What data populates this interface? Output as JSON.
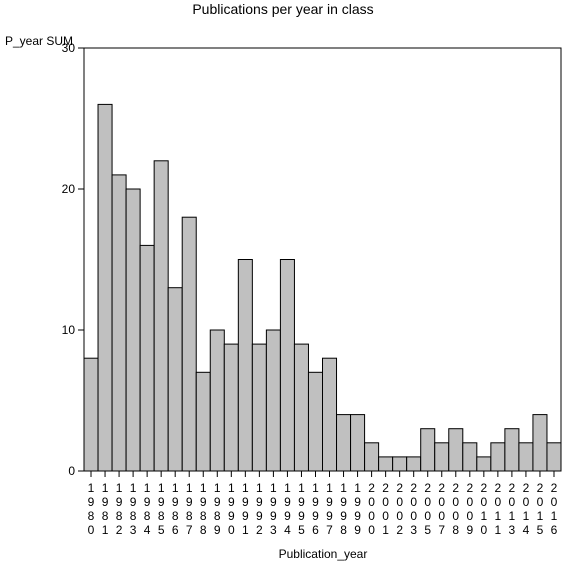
{
  "chart_data": {
    "type": "bar",
    "title": "Publications per year in class",
    "ylabel": "P_year SUM",
    "xlabel": "Publication_year",
    "ylim": [
      0,
      30
    ],
    "yticks": [
      0,
      10,
      20,
      30
    ],
    "grid": false,
    "legend": "none",
    "bar_color": "#c0c0c0",
    "categories": [
      "1980",
      "1981",
      "1982",
      "1983",
      "1984",
      "1985",
      "1986",
      "1987",
      "1988",
      "1989",
      "1990",
      "1991",
      "1992",
      "1993",
      "1994",
      "1995",
      "1996",
      "1997",
      "1998",
      "1999",
      "2000",
      "2001",
      "2002",
      "2003",
      "2005",
      "2007",
      "2008",
      "2009",
      "2010",
      "2011",
      "2013",
      "2014",
      "2015",
      "2016"
    ],
    "values": [
      8,
      26,
      21,
      20,
      16,
      22,
      13,
      18,
      7,
      10,
      9,
      15,
      9,
      10,
      15,
      9,
      7,
      8,
      4,
      4,
      2,
      1,
      1,
      1,
      3,
      2,
      3,
      2,
      1,
      2,
      3,
      2,
      4,
      2
    ]
  }
}
